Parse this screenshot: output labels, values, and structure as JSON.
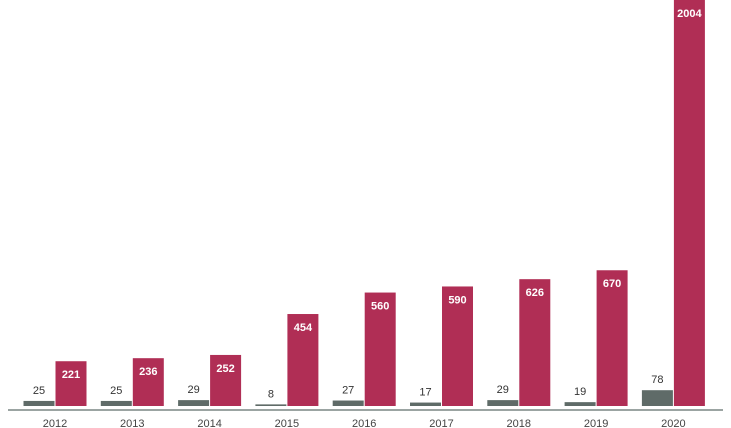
{
  "chart_data": {
    "type": "bar",
    "categories": [
      "2012",
      "2013",
      "2014",
      "2015",
      "2016",
      "2017",
      "2018",
      "2019",
      "2020"
    ],
    "series": [
      {
        "color": "#5f6b68",
        "values": [
          25,
          25,
          29,
          8,
          27,
          17,
          29,
          19,
          78
        ]
      },
      {
        "color": "#b02e55",
        "values": [
          221,
          236,
          252,
          454,
          560,
          590,
          626,
          670,
          2004
        ]
      }
    ]
  }
}
